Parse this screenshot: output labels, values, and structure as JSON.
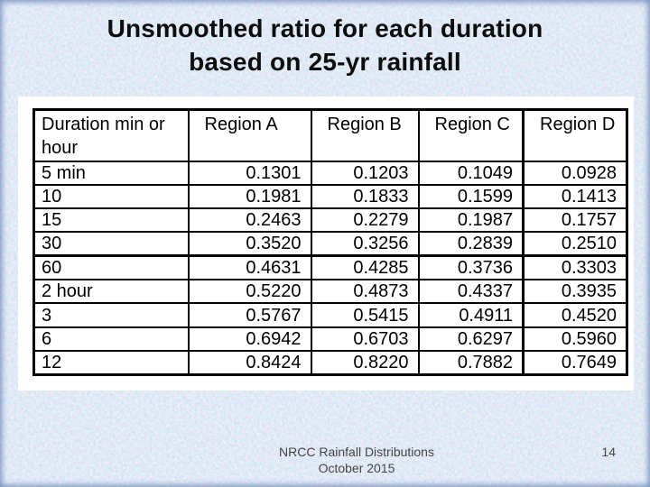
{
  "slide": {
    "title": {
      "line1": "Unsmoothed ratio for each duration",
      "line2": "based on 25-yr rainfall"
    },
    "footer": {
      "line1": "NRCC Rainfall Distributions",
      "line2": "October 2015",
      "page_number": "14"
    }
  },
  "chart_data": {
    "type": "table",
    "title": "Unsmoothed ratio for each duration based on 25-yr rainfall",
    "columns": [
      "Duration min or hour",
      "Region A",
      "Region B",
      "Region C",
      "Region D"
    ],
    "rows": [
      [
        "5 min",
        "0.1301",
        "0.1203",
        "0.1049",
        "0.0928"
      ],
      [
        "10",
        "0.1981",
        "0.1833",
        "0.1599",
        "0.1413"
      ],
      [
        "15",
        "0.2463",
        "0.2279",
        "0.1987",
        "0.1757"
      ],
      [
        "30",
        "0.3520",
        "0.3256",
        "0.2839",
        "0.2510"
      ],
      [
        "60",
        "0.4631",
        "0.4285",
        "0.3736",
        "0.3303"
      ],
      [
        "2 hour",
        "0.5220",
        "0.4873",
        "0.4337",
        "0.3935"
      ],
      [
        "3",
        "0.5767",
        "0.5415",
        "0.4911",
        "0.4520"
      ],
      [
        "6",
        "0.6942",
        "0.6703",
        "0.6297",
        "0.5960"
      ],
      [
        "12",
        "0.8424",
        "0.8220",
        "0.7882",
        "0.7649"
      ]
    ]
  },
  "colors": {
    "background": "#b7cde9",
    "panel": "#ffffff",
    "table_border": "#000000",
    "title_text": "#0d0d0d",
    "footer_text": "#444444"
  }
}
